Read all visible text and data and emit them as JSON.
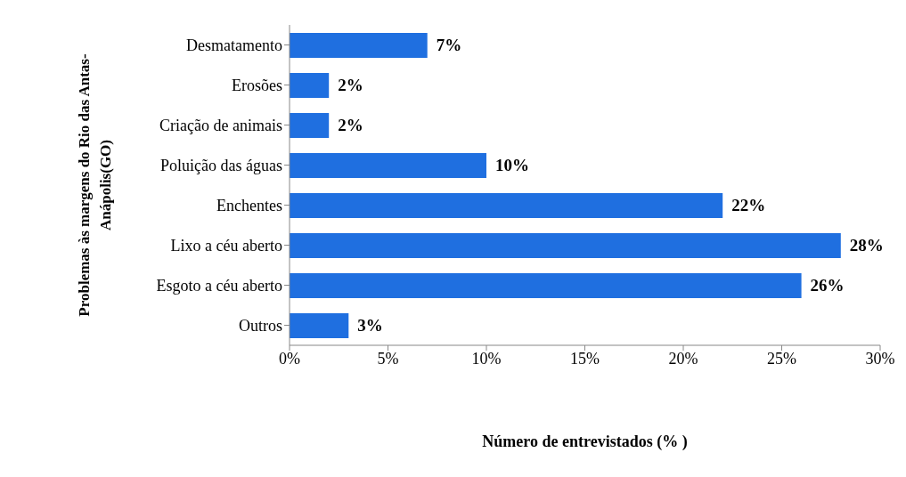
{
  "chart_data": {
    "type": "bar",
    "orientation": "horizontal",
    "xlabel": "Número de entrevistados (% )",
    "ylabel": "Problemas às margens do Rio das Antas-Anápolis(GO)",
    "categories": [
      "Desmatamento",
      "Erosões",
      "Criação de animais",
      "Poluição das águas",
      "Enchentes",
      "Lixo a céu aberto",
      "Esgoto a céu aberto",
      "Outros"
    ],
    "values": [
      7,
      2,
      2,
      10,
      22,
      28,
      26,
      3
    ],
    "value_labels": [
      "7%",
      "2%",
      "2%",
      "10%",
      "22%",
      "28%",
      "26%",
      "3%"
    ],
    "color": "#1f6fe0",
    "xlim": [
      0,
      30
    ],
    "xticks": [
      {
        "value": 0,
        "label": "0%"
      },
      {
        "value": 5,
        "label": "5%"
      },
      {
        "value": 10,
        "label": "10%"
      },
      {
        "value": 15,
        "label": "15%"
      },
      {
        "value": 20,
        "label": "20%"
      },
      {
        "value": 25,
        "label": "25%"
      },
      {
        "value": 30,
        "label": "30%"
      }
    ],
    "grid": false,
    "legend": false
  }
}
